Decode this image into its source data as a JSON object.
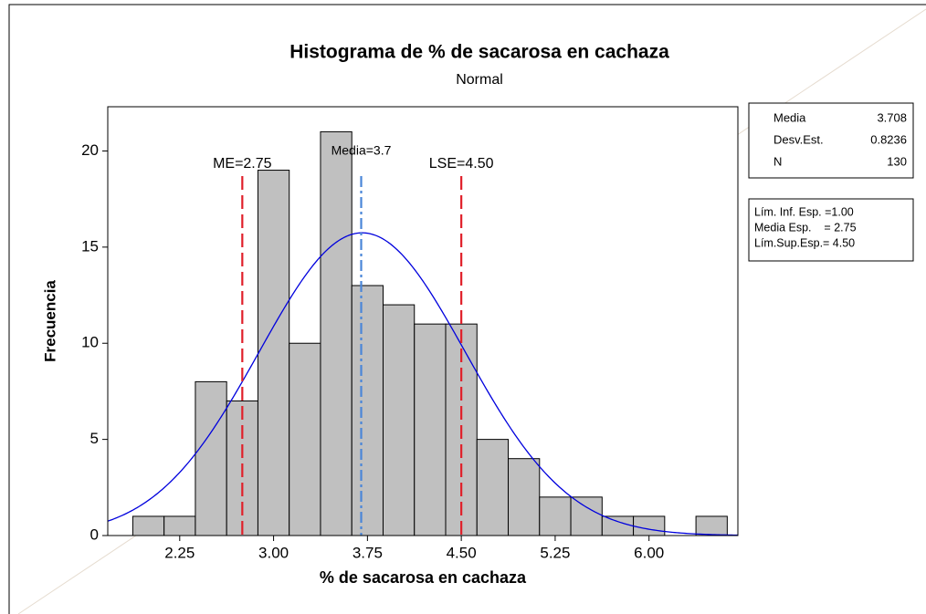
{
  "chart_data": {
    "type": "histogram",
    "title": "Histograma de % de sacarosa en cachaza",
    "subtitle": "Normal",
    "xlabel": "% de sacarosa en cachaza",
    "ylabel": "Frecuencia",
    "bins": [
      1.875,
      2.125,
      2.375,
      2.625,
      2.875,
      3.125,
      3.375,
      3.625,
      3.875,
      4.125,
      4.375,
      4.625,
      4.875,
      5.125,
      5.375,
      5.625,
      5.875,
      6.125,
      6.375,
      6.625
    ],
    "counts": [
      1,
      1,
      8,
      7,
      19,
      10,
      21,
      13,
      12,
      11,
      11,
      5,
      4,
      2,
      2,
      1,
      1,
      0,
      1
    ],
    "color": "#c0c0c0",
    "curve_color": "#0000dd",
    "xlim": [
      1.675,
      6.71
    ],
    "ylim": [
      0,
      22.3
    ],
    "xticks": [
      2.25,
      {
        "value": 3.0,
        "label": "3.00"
      },
      3.75,
      {
        "value": 4.5,
        "label": "4.50"
      },
      5.25,
      {
        "value": 6.0,
        "label": "6.00"
      }
    ],
    "yticks": [
      0,
      5,
      10,
      15,
      20
    ],
    "reference_lines": [
      {
        "value": 2.75,
        "label": "ME=2.75",
        "color": "#e0202a"
      },
      {
        "value": 3.7,
        "label": "Media=3.7",
        "color": "#4a86d8"
      },
      {
        "value": 4.5,
        "label": "LSE=4.50",
        "color": "#e0202a"
      }
    ],
    "stats": [
      {
        "name": "Media",
        "value": 3.708
      },
      {
        "name": "Desv.Est.",
        "value": 0.8236
      },
      {
        "name": "N",
        "value": 130
      }
    ],
    "spec_lines": [
      "Lím. Inf. Esp. =1.00",
      "Media Esp.    = 2.75",
      "Lím.Sup.Esp.= 4.50"
    ]
  }
}
